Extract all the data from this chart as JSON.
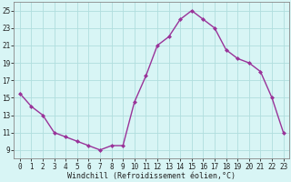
{
  "x": [
    0,
    1,
    2,
    3,
    4,
    5,
    6,
    7,
    8,
    9,
    10,
    11,
    12,
    13,
    14,
    15,
    16,
    17,
    18,
    19,
    20,
    21,
    22,
    23
  ],
  "y": [
    15.5,
    14.0,
    13.0,
    11.0,
    10.5,
    10.0,
    9.5,
    9.0,
    9.5,
    9.5,
    14.5,
    17.5,
    21.0,
    22.0,
    24.0,
    25.0,
    24.0,
    23.0,
    20.5,
    19.5,
    19.0,
    18.0,
    15.0,
    11.0
  ],
  "line_color": "#993399",
  "marker": "D",
  "marker_size": 2,
  "bg_color": "#d8f5f5",
  "grid_color": "#b0dede",
  "xlabel": "Windchill (Refroidissement éolien,°C)",
  "xlabel_fontsize": 6.0,
  "tick_fontsize": 5.5,
  "ylim": [
    8,
    26
  ],
  "xlim": [
    -0.5,
    23.5
  ],
  "yticks": [
    9,
    11,
    13,
    15,
    17,
    19,
    21,
    23,
    25
  ],
  "xticks": [
    0,
    1,
    2,
    3,
    4,
    5,
    6,
    7,
    8,
    9,
    10,
    11,
    12,
    13,
    14,
    15,
    16,
    17,
    18,
    19,
    20,
    21,
    22,
    23
  ],
  "spine_color": "#888888",
  "line_width": 1.0
}
